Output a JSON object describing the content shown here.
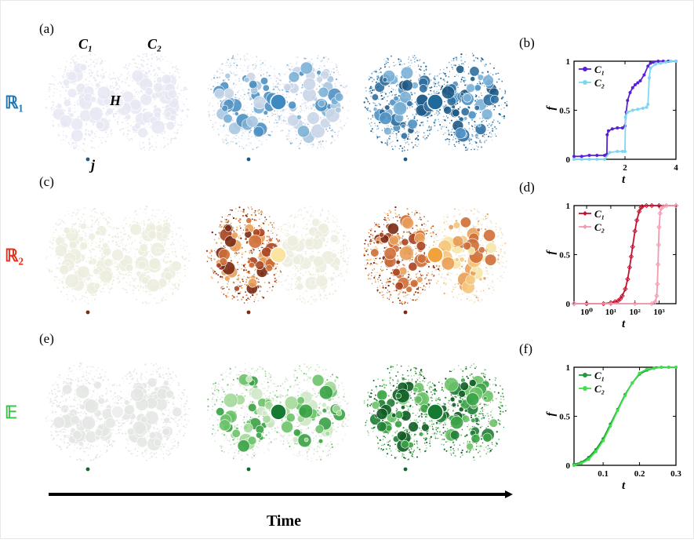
{
  "rows": [
    {
      "panel_letter": "(a)",
      "row_label": "ℝ₁",
      "row_label_color": "#1f77b4",
      "palette": [
        "#e6e8f2",
        "#c9d6e8",
        "#a9c6e0",
        "#7bb0d6",
        "#4f91c3",
        "#2f6f9e",
        "#1f5a85"
      ],
      "hub_colors": [
        "#eef0f6",
        "#3d8ac0",
        "#1f6a9a"
      ],
      "seed_color": "#1f5a85",
      "annotations": {
        "c1": "C₁",
        "c2": "C₂",
        "hub": "H",
        "seed": "j"
      }
    },
    {
      "panel_letter": "(c)",
      "row_label": "ℝ₂",
      "row_label_color": "#e0321e",
      "palette": [
        "#ecedde",
        "#f6e6a8",
        "#f6c77d",
        "#e8a05a",
        "#cf6f37",
        "#a84420",
        "#7a2a14"
      ],
      "hub_colors": [
        "#f0f0e6",
        "#fbe3a0",
        "#f2a23c"
      ],
      "seed_color": "#7a2a14"
    },
    {
      "panel_letter": "(e)",
      "row_label": "𝔼",
      "row_label_color": "#3ac24a",
      "palette": [
        "#e4e6e4",
        "#cfe8c8",
        "#a4d99a",
        "#6cc36a",
        "#3aa245",
        "#1f7f34",
        "#0f5c24"
      ],
      "hub_colors": [
        "#eef0ee",
        "#167a32",
        "#157a30"
      ],
      "seed_color": "#0f6a2a"
    }
  ],
  "time_label": "Time",
  "chart_data": [
    {
      "panel": "(b)",
      "type": "line",
      "xlabel": "t",
      "ylabel": "f",
      "xlim": [
        0,
        4
      ],
      "ylim": [
        0,
        1
      ],
      "x_ticks": [
        0,
        2,
        4
      ],
      "y_ticks": [
        0,
        0.5,
        1
      ],
      "y_tick_labels": [
        "0",
        "0.5",
        "1"
      ],
      "x_tick_labels": [
        "",
        "2",
        "4"
      ],
      "legend_position": "top-left",
      "series": [
        {
          "name": "C₁",
          "color": "#5a20d6",
          "marker": "circle",
          "x": [
            0,
            0.3,
            0.6,
            0.9,
            1.2,
            1.29,
            1.3,
            1.35,
            1.5,
            1.7,
            1.9,
            2.0,
            2.05,
            2.1,
            2.2,
            2.3,
            2.4,
            2.5,
            2.6,
            2.75,
            2.9,
            3.0,
            3.1,
            3.3,
            3.5,
            3.7,
            4.0
          ],
          "y": [
            0.03,
            0.03,
            0.04,
            0.04,
            0.04,
            0.05,
            0.25,
            0.29,
            0.31,
            0.32,
            0.32,
            0.34,
            0.48,
            0.6,
            0.68,
            0.73,
            0.76,
            0.78,
            0.8,
            0.86,
            0.95,
            0.98,
            0.99,
            1.0,
            1.0,
            1.0,
            1.0
          ]
        },
        {
          "name": "C₂",
          "color": "#7fd6f2",
          "marker": "circle",
          "x": [
            0,
            0.3,
            0.6,
            0.9,
            1.2,
            1.4,
            1.7,
            1.9,
            2.0,
            2.02,
            2.1,
            2.3,
            2.5,
            2.7,
            2.85,
            2.9,
            2.95,
            3.0,
            3.2,
            3.4,
            3.6,
            3.8,
            4.0
          ],
          "y": [
            0.0,
            0.0,
            0.0,
            0.0,
            0.0,
            0.07,
            0.08,
            0.08,
            0.08,
            0.43,
            0.48,
            0.5,
            0.51,
            0.52,
            0.53,
            0.56,
            0.83,
            0.93,
            0.97,
            0.98,
            0.99,
            1.0,
            1.0
          ]
        }
      ]
    },
    {
      "panel": "(d)",
      "type": "line",
      "xscale": "log",
      "xlabel": "t",
      "ylabel": "f",
      "xlim": [
        0.3,
        5000
      ],
      "ylim": [
        0,
        1
      ],
      "x_ticks": [
        1,
        10,
        100,
        1000
      ],
      "x_tick_labels": [
        "10⁰",
        "10¹",
        "10²",
        "10³"
      ],
      "y_ticks": [
        0,
        0.5,
        1
      ],
      "y_tick_labels": [
        "0",
        "0.5",
        "1"
      ],
      "legend_position": "top-left",
      "series": [
        {
          "name": "C₁",
          "color": "#c8102e",
          "marker": "diamond",
          "x": [
            0.3,
            1,
            5,
            10,
            15,
            20,
            25,
            30,
            40,
            50,
            60,
            70,
            80,
            100,
            120,
            150,
            180,
            200,
            300,
            500,
            1000,
            5000
          ],
          "y": [
            0.0,
            0.0,
            0.0,
            0.01,
            0.02,
            0.03,
            0.05,
            0.08,
            0.15,
            0.25,
            0.37,
            0.48,
            0.58,
            0.74,
            0.85,
            0.94,
            0.98,
            0.99,
            1.0,
            1.0,
            1.0,
            1.0
          ]
        },
        {
          "name": "C₂",
          "color": "#f29bb0",
          "marker": "diamond",
          "x": [
            0.3,
            10,
            100,
            500,
            700,
            800,
            850,
            900,
            950,
            1000,
            1100,
            1200,
            1500,
            2000,
            5000
          ],
          "y": [
            0.0,
            0.0,
            0.0,
            0.0,
            0.02,
            0.08,
            0.2,
            0.4,
            0.6,
            0.78,
            0.92,
            0.97,
            0.99,
            1.0,
            1.0
          ]
        }
      ]
    },
    {
      "panel": "(f)",
      "type": "line",
      "xlabel": "t",
      "ylabel": "f",
      "xlim": [
        0.02,
        0.3
      ],
      "ylim": [
        0,
        1
      ],
      "x_ticks": [
        0.1,
        0.2,
        0.3
      ],
      "x_tick_labels": [
        "0.1",
        "0.2",
        "0.3"
      ],
      "y_ticks": [
        0,
        0.5,
        1
      ],
      "y_tick_labels": [
        "0",
        "0.5",
        "1"
      ],
      "legend_position": "top-left",
      "series": [
        {
          "name": "C₁",
          "color": "#1e9a3c",
          "marker": "circle",
          "x": [
            0.02,
            0.04,
            0.06,
            0.08,
            0.1,
            0.12,
            0.14,
            0.16,
            0.18,
            0.2,
            0.22,
            0.24,
            0.26,
            0.28,
            0.3
          ],
          "y": [
            0.01,
            0.03,
            0.08,
            0.16,
            0.27,
            0.42,
            0.57,
            0.72,
            0.84,
            0.93,
            0.97,
            0.99,
            1.0,
            1.0,
            1.0
          ]
        },
        {
          "name": "C₂",
          "color": "#3fe04a",
          "marker": "circle",
          "x": [
            0.02,
            0.04,
            0.06,
            0.08,
            0.1,
            0.12,
            0.14,
            0.16,
            0.18,
            0.2,
            0.22,
            0.24,
            0.26,
            0.28,
            0.3
          ],
          "y": [
            0.0,
            0.02,
            0.06,
            0.14,
            0.25,
            0.4,
            0.56,
            0.71,
            0.84,
            0.94,
            0.98,
            0.99,
            1.0,
            1.0,
            1.0
          ]
        }
      ]
    }
  ]
}
